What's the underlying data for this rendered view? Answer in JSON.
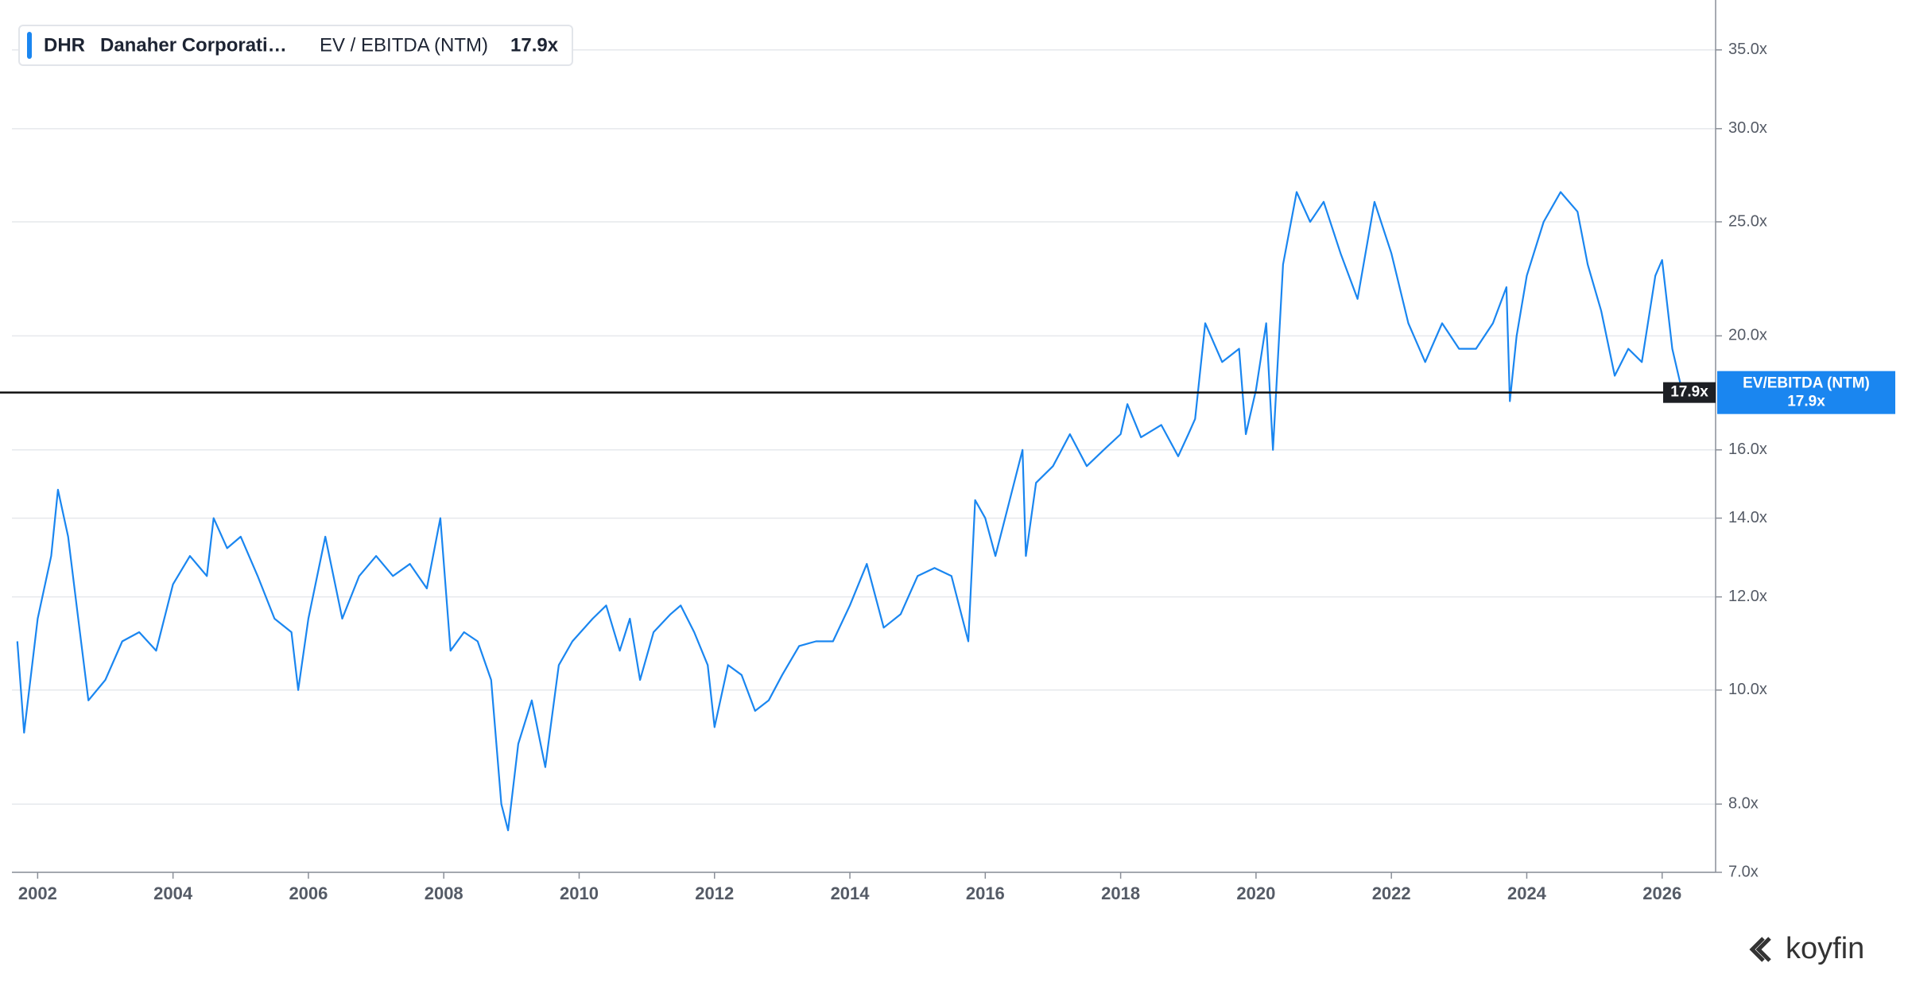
{
  "chart_data": {
    "type": "line",
    "legend": {
      "ticker": "DHR",
      "company": "Danaher Corporati…"
    },
    "badge_label": "EV/EBITDA (NTM)",
    "hline": {
      "value": 17.9,
      "label": "17.9x"
    },
    "watermark": "koyfin",
    "ylog": true,
    "grid": true,
    "xlim": [
      2001.62,
      2026.79
    ],
    "xticks": [
      2002,
      2004,
      2006,
      2008,
      2010,
      2012,
      2014,
      2016,
      2018,
      2020,
      2022,
      2024,
      2026
    ],
    "ylim": [
      7,
      37.7
    ],
    "yticks": [
      {
        "value": 7,
        "label": "7.0x"
      },
      {
        "value": 8,
        "label": "8.0x"
      },
      {
        "value": 10,
        "label": "10.0x"
      },
      {
        "value": 12,
        "label": "12.0x"
      },
      {
        "value": 14,
        "label": "14.0x"
      },
      {
        "value": 16,
        "label": "16.0x"
      },
      {
        "value": 20,
        "label": "20.0x"
      },
      {
        "value": 25,
        "label": "25.0x"
      },
      {
        "value": 30,
        "label": "30.0x"
      },
      {
        "value": 35,
        "label": "35.0x"
      }
    ],
    "x": [
      2001.7,
      2001.8,
      2002.0,
      2002.2,
      2002.3,
      2002.45,
      2002.6,
      2002.75,
      2003.0,
      2003.25,
      2003.5,
      2003.75,
      2004.0,
      2004.25,
      2004.5,
      2004.6,
      2004.8,
      2005.0,
      2005.25,
      2005.5,
      2005.75,
      2005.85,
      2006.0,
      2006.25,
      2006.5,
      2006.75,
      2007.0,
      2007.25,
      2007.5,
      2007.75,
      2007.95,
      2008.1,
      2008.3,
      2008.5,
      2008.7,
      2008.85,
      2008.95,
      2009.1,
      2009.3,
      2009.5,
      2009.7,
      2009.9,
      2010.2,
      2010.4,
      2010.6,
      2010.75,
      2010.9,
      2011.1,
      2011.35,
      2011.5,
      2011.7,
      2011.9,
      2012.0,
      2012.2,
      2012.4,
      2012.6,
      2012.8,
      2013.0,
      2013.25,
      2013.5,
      2013.75,
      2014.0,
      2014.25,
      2014.5,
      2014.75,
      2015.0,
      2015.25,
      2015.5,
      2015.75,
      2015.85,
      2016.0,
      2016.15,
      2016.4,
      2016.55,
      2016.6,
      2016.75,
      2017.0,
      2017.25,
      2017.5,
      2017.75,
      2018.0,
      2018.1,
      2018.3,
      2018.6,
      2018.85,
      2019.0,
      2019.1,
      2019.25,
      2019.5,
      2019.75,
      2019.85,
      2020.0,
      2020.15,
      2020.25,
      2020.4,
      2020.6,
      2020.8,
      2021.0,
      2021.25,
      2021.5,
      2021.75,
      2022.0,
      2022.25,
      2022.5,
      2022.75,
      2023.0,
      2023.25,
      2023.5,
      2023.7,
      2023.75,
      2023.85,
      2024.0,
      2024.25,
      2024.5,
      2024.75,
      2024.9,
      2025.1,
      2025.3,
      2025.5,
      2025.7,
      2025.9,
      2026.0,
      2026.15,
      2026.3
    ],
    "series": [
      {
        "name": "EV / EBITDA (NTM)",
        "color": "#1a86f0",
        "values": [
          11.0,
          9.2,
          11.5,
          13.0,
          14.8,
          13.5,
          11.5,
          9.8,
          10.2,
          11.0,
          11.2,
          10.8,
          12.3,
          13.0,
          12.5,
          14.0,
          13.2,
          13.5,
          12.5,
          11.5,
          11.2,
          10.0,
          11.5,
          13.5,
          11.5,
          12.5,
          13.0,
          12.5,
          12.8,
          12.2,
          14.0,
          10.8,
          11.2,
          11.0,
          10.2,
          8.0,
          7.6,
          9.0,
          9.8,
          8.6,
          10.5,
          11.0,
          11.5,
          11.8,
          10.8,
          11.5,
          10.2,
          11.2,
          11.6,
          11.8,
          11.2,
          10.5,
          9.3,
          10.5,
          10.3,
          9.6,
          9.8,
          10.3,
          10.9,
          11.0,
          11.0,
          11.8,
          12.8,
          11.3,
          11.6,
          12.5,
          12.7,
          12.5,
          11.0,
          14.5,
          14.0,
          13.0,
          14.8,
          16.0,
          13.0,
          15.0,
          15.5,
          16.5,
          15.5,
          16.0,
          16.5,
          17.5,
          16.4,
          16.8,
          15.8,
          16.5,
          17.0,
          20.5,
          19.0,
          19.5,
          16.5,
          18.0,
          20.5,
          16.0,
          23.0,
          26.5,
          25.0,
          26.0,
          23.5,
          21.5,
          26.0,
          23.5,
          20.5,
          19.0,
          20.5,
          19.5,
          19.5,
          20.5,
          22.0,
          17.6,
          20.0,
          22.5,
          25.0,
          26.5,
          25.5,
          23.0,
          21.0,
          18.5,
          19.5,
          19.0,
          22.5,
          23.2,
          19.5,
          17.9
        ]
      }
    ]
  }
}
